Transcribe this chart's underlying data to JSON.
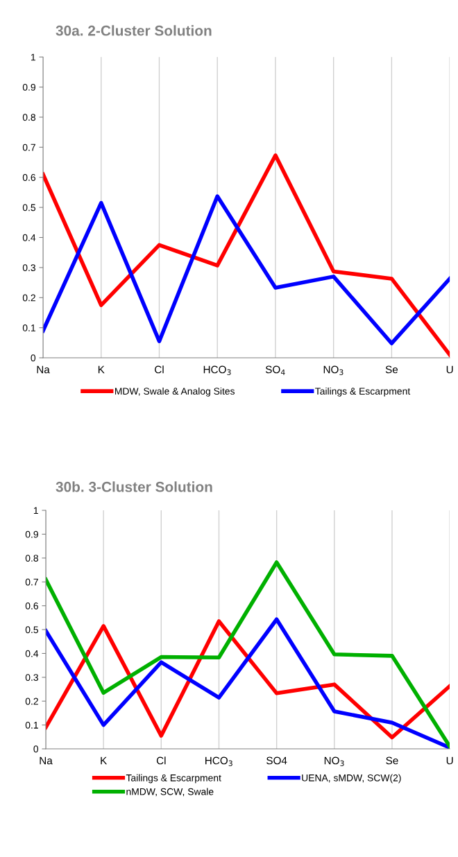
{
  "chart_data": [
    {
      "type": "line",
      "title": "30a. 2-Cluster Solution",
      "categories": [
        "Na",
        "K",
        "Cl",
        "HCO$_{3}$",
        "SO$_{4}$",
        "NO$_{3}$",
        "Se",
        "U"
      ],
      "ylim": [
        0,
        1
      ],
      "yticks": [
        0,
        0.1,
        0.2,
        0.3,
        0.4,
        0.5,
        0.6,
        0.7,
        0.8,
        0.9,
        1
      ],
      "grid": "x",
      "legend": "bottom",
      "marker": "none",
      "line_style": "solid",
      "series": [
        {
          "name": "MDW, Swale & Analog Sites",
          "color": "#ff0000",
          "values": [
            0.61,
            0.175,
            0.375,
            0.307,
            0.673,
            0.287,
            0.263,
            0.01
          ]
        },
        {
          "name": "Tailings & Escarpment",
          "color": "#0000ff",
          "values": [
            0.09,
            0.515,
            0.055,
            0.537,
            0.233,
            0.27,
            0.048,
            0.263
          ]
        }
      ]
    },
    {
      "type": "line",
      "title": "30b. 3-Cluster Solution",
      "categories": [
        "Na",
        "K",
        "Cl",
        "HCO$_{3}$",
        "SO4",
        "NO$_{3}$",
        "Se",
        "U"
      ],
      "ylim": [
        0,
        1
      ],
      "yticks": [
        0,
        0.1,
        0.2,
        0.3,
        0.4,
        0.5,
        0.6,
        0.7,
        0.8,
        0.9,
        1
      ],
      "grid": "x",
      "legend": "bottom",
      "marker": "none",
      "line_style": "solid",
      "series": [
        {
          "name": "Tailings & Escarpment",
          "color": "#ff0000",
          "values": [
            0.09,
            0.515,
            0.055,
            0.535,
            0.233,
            0.27,
            0.048,
            0.263
          ]
        },
        {
          "name": "UENA, sMDW, SCW(2)",
          "color": "#0000ff",
          "values": [
            0.495,
            0.1,
            0.363,
            0.215,
            0.543,
            0.157,
            0.11,
            0.005
          ]
        },
        {
          "name": "nMDW, SCW, Swale",
          "color": "#00b000",
          "values": [
            0.71,
            0.235,
            0.385,
            0.383,
            0.782,
            0.396,
            0.39,
            0.01
          ]
        }
      ]
    }
  ]
}
